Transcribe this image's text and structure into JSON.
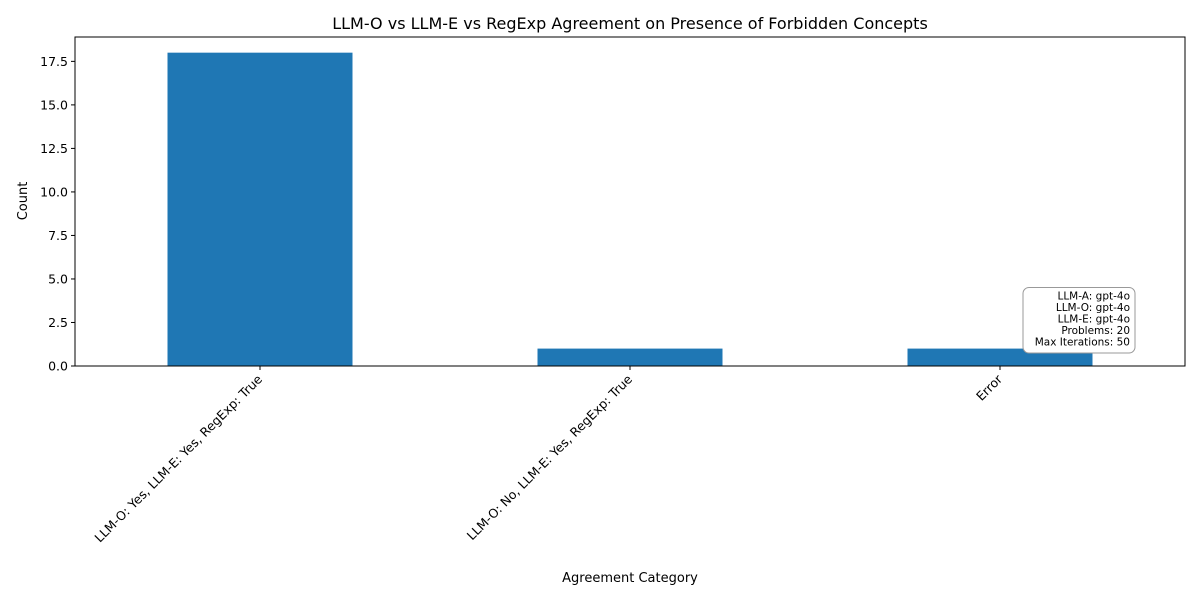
{
  "chart_data": {
    "type": "bar",
    "title": "LLM-O vs LLM-E vs RegExp Agreement on Presence of Forbidden Concepts",
    "xlabel": "Agreement Category",
    "ylabel": "Count",
    "categories": [
      "LLM-O: Yes, LLM-E: Yes, RegExp: True",
      "LLM-O: No, LLM-E: Yes, RegExp: True",
      "Error"
    ],
    "values": [
      18,
      1,
      1
    ],
    "ylim": [
      0,
      18.9
    ],
    "yticks": [
      0.0,
      2.5,
      5.0,
      7.5,
      10.0,
      12.5,
      15.0,
      17.5
    ],
    "ytick_labels": [
      "0.0",
      "2.5",
      "5.0",
      "7.5",
      "10.0",
      "12.5",
      "15.0",
      "17.5"
    ],
    "bar_color": "#1f77b4",
    "grid": false,
    "info_box": {
      "placement": "bottom-right",
      "lines": [
        "LLM-A: gpt-4o",
        "LLM-O: gpt-4o",
        "LLM-E: gpt-4o",
        "Problems: 20",
        "Max Iterations: 50"
      ]
    }
  }
}
